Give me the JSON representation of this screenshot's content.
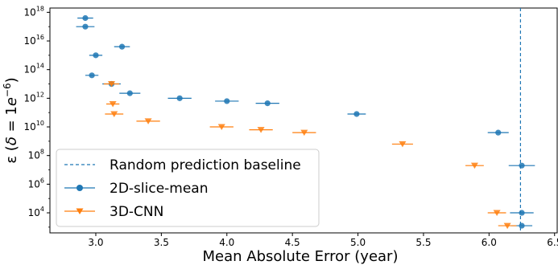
{
  "chart_data": {
    "type": "scatter",
    "xlabel": "Mean Absolute Error (year)",
    "ylabel": "ε (δ = 1e−6)",
    "ylabel_parts": {
      "eps": "ε",
      "lparen": "(",
      "delta": "δ",
      "eq": " = 1",
      "e": "e",
      "exp": "−6",
      "rparen": ")"
    },
    "xlim": [
      2.65,
      6.52
    ],
    "ylim_log10": [
      2.6,
      18.3
    ],
    "y_scale": "log",
    "x_ticks": [
      "3.0",
      "3.5",
      "4.0",
      "4.5",
      "5.0",
      "5.5",
      "6.0",
      "6.5"
    ],
    "y_ticks": [
      {
        "base": "10",
        "exp": "18",
        "value_log10": 18
      },
      {
        "base": "10",
        "exp": "16",
        "value_log10": 16
      },
      {
        "base": "10",
        "exp": "14",
        "value_log10": 14
      },
      {
        "base": "10",
        "exp": "12",
        "value_log10": 12
      },
      {
        "base": "10",
        "exp": "10",
        "value_log10": 10
      },
      {
        "base": "10",
        "exp": "8",
        "value_log10": 8
      },
      {
        "base": "10",
        "exp": "6",
        "value_log10": 6
      },
      {
        "base": "10",
        "exp": "4",
        "value_log10": 4
      }
    ],
    "grid": false,
    "legend_position": "bottom-left",
    "baseline": {
      "name": "Random prediction baseline",
      "x": 6.24,
      "color": "#1f77b4"
    },
    "series": [
      {
        "name": "2D-slice-mean",
        "marker": "circle",
        "color": "#1f77b4",
        "points": [
          {
            "x": 2.92,
            "y_log10": 17.6,
            "xerr": 0.06
          },
          {
            "x": 2.92,
            "y_log10": 17.0,
            "xerr": 0.07
          },
          {
            "x": 3.0,
            "y_log10": 15.0,
            "xerr": 0.05
          },
          {
            "x": 3.2,
            "y_log10": 15.6,
            "xerr": 0.06
          },
          {
            "x": 2.97,
            "y_log10": 13.6,
            "xerr": 0.05
          },
          {
            "x": 3.12,
            "y_log10": 13.0,
            "xerr": 0.07
          },
          {
            "x": 3.26,
            "y_log10": 12.35,
            "xerr": 0.08
          },
          {
            "x": 3.64,
            "y_log10": 12.0,
            "xerr": 0.09
          },
          {
            "x": 4.0,
            "y_log10": 11.8,
            "xerr": 0.09
          },
          {
            "x": 4.31,
            "y_log10": 11.65,
            "xerr": 0.09
          },
          {
            "x": 4.99,
            "y_log10": 10.9,
            "xerr": 0.07
          },
          {
            "x": 6.07,
            "y_log10": 9.6,
            "xerr": 0.08
          },
          {
            "x": 6.25,
            "y_log10": 7.3,
            "xerr": 0.1
          },
          {
            "x": 6.25,
            "y_log10": 4.0,
            "xerr": 0.09
          },
          {
            "x": 6.25,
            "y_log10": 3.1,
            "xerr": 0.08
          }
        ]
      },
      {
        "name": "3D-CNN",
        "marker": "triangle_down",
        "color": "#ff7f0e",
        "points": [
          {
            "x": 3.12,
            "y_log10": 13.0,
            "xerr": 0.06
          },
          {
            "x": 3.13,
            "y_log10": 11.6,
            "xerr": 0.05
          },
          {
            "x": 3.14,
            "y_log10": 10.9,
            "xerr": 0.07
          },
          {
            "x": 3.4,
            "y_log10": 10.4,
            "xerr": 0.09
          },
          {
            "x": 3.96,
            "y_log10": 10.0,
            "xerr": 0.09
          },
          {
            "x": 4.26,
            "y_log10": 9.8,
            "xerr": 0.09
          },
          {
            "x": 4.59,
            "y_log10": 9.6,
            "xerr": 0.09
          },
          {
            "x": 5.34,
            "y_log10": 8.8,
            "xerr": 0.08
          },
          {
            "x": 5.89,
            "y_log10": 7.3,
            "xerr": 0.07
          },
          {
            "x": 6.06,
            "y_log10": 4.0,
            "xerr": 0.07
          },
          {
            "x": 6.14,
            "y_log10": 3.1,
            "xerr": 0.07
          }
        ]
      }
    ]
  }
}
